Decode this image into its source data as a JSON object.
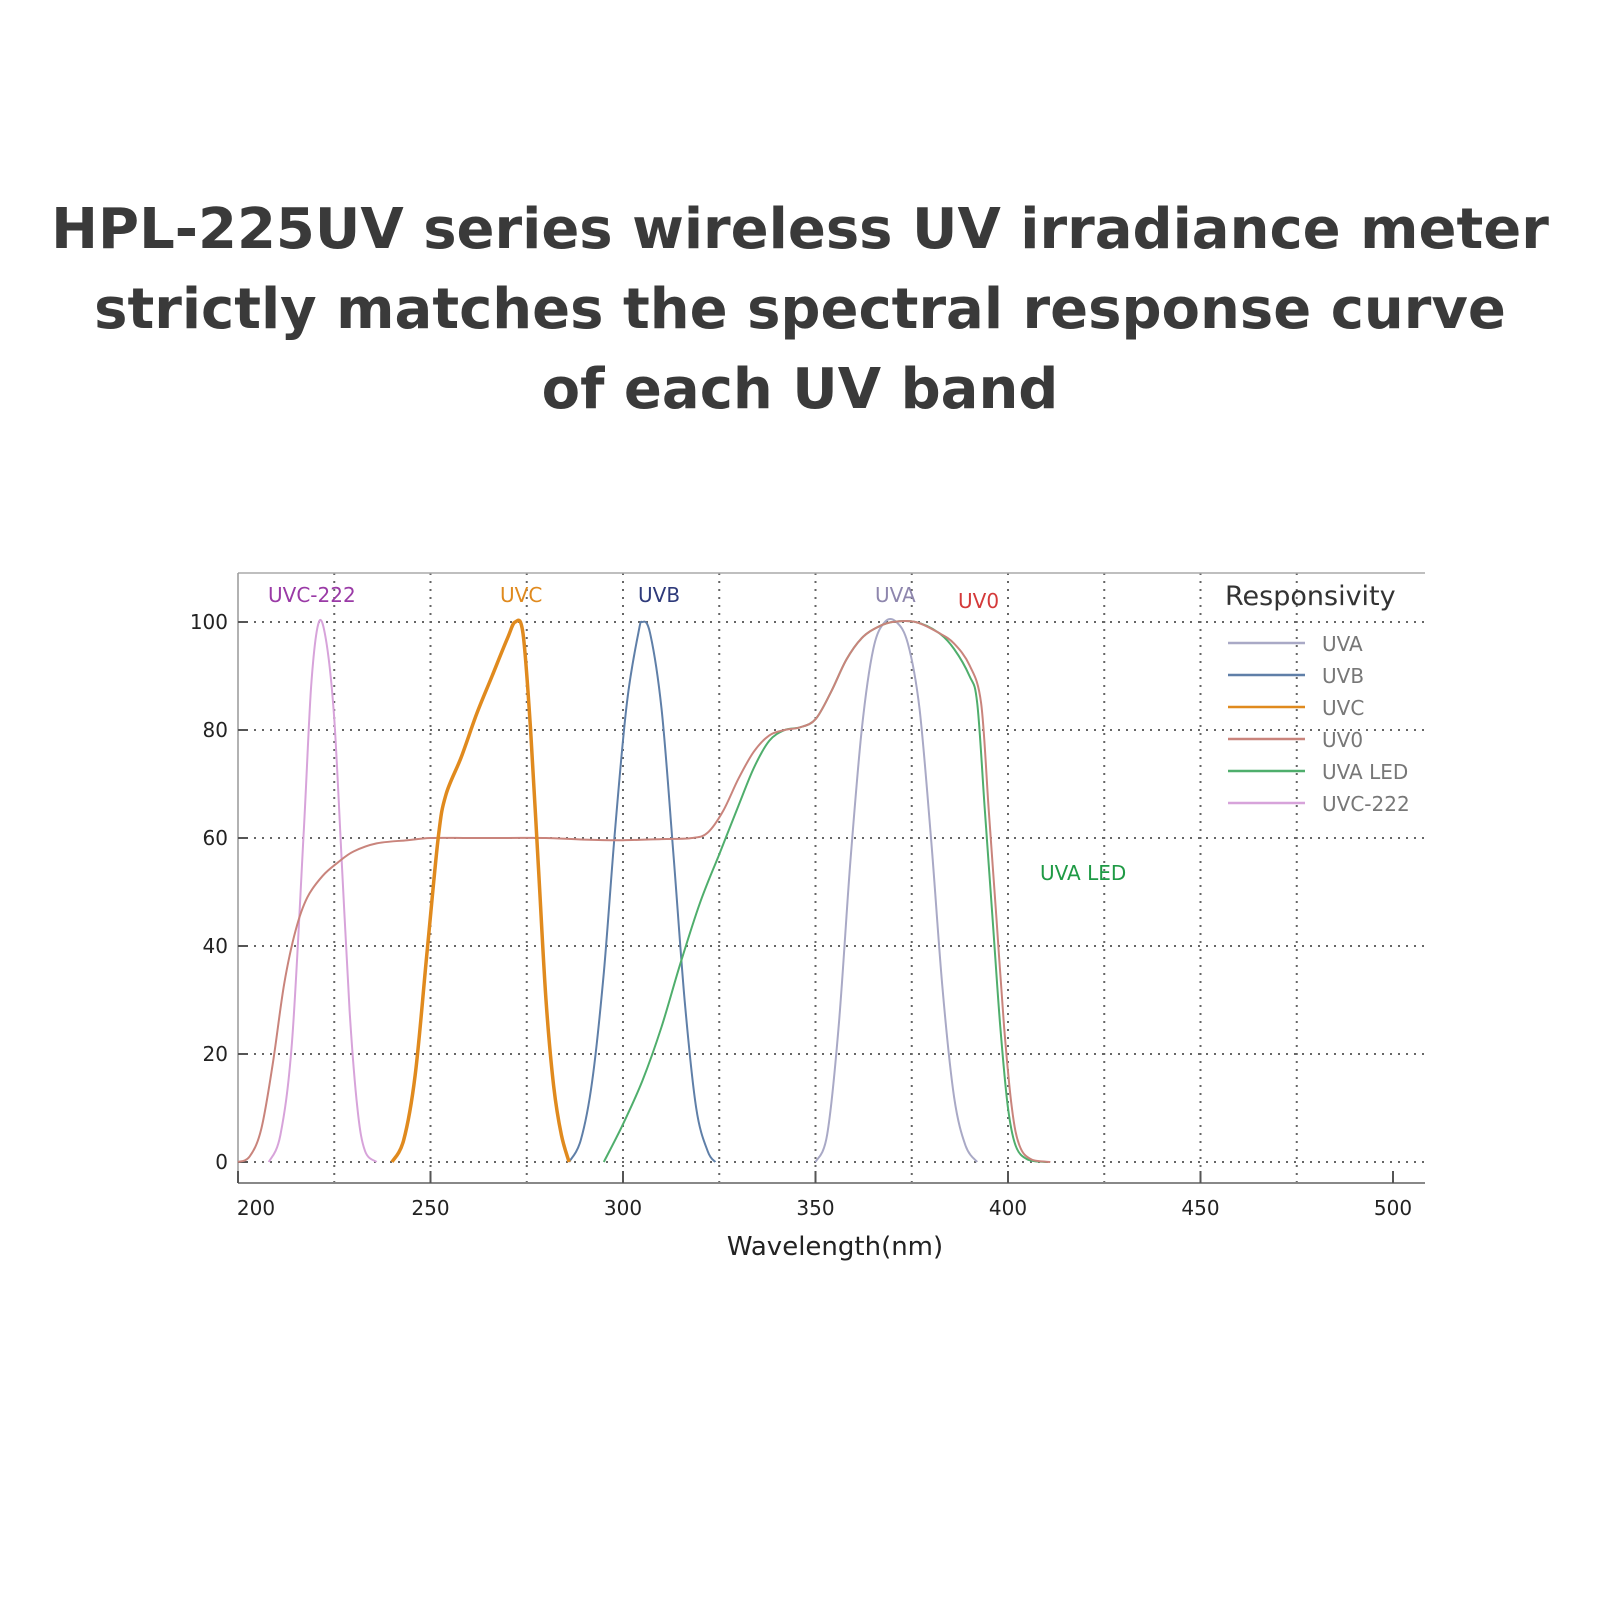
{
  "headline": {
    "line1": "HPL-225UV series wireless UV irradiance meter",
    "line2": "strictly matches the spectral response curve",
    "line3": "of each UV band"
  },
  "chart_data": {
    "type": "line",
    "xlabel": "Wavelength(nm)",
    "ylabel": "",
    "xlim": [
      200,
      500
    ],
    "ylim": [
      0,
      100
    ],
    "x_ticks": [
      200,
      250,
      300,
      350,
      400,
      450,
      500
    ],
    "y_ticks": [
      0,
      20,
      40,
      60,
      80,
      100
    ],
    "grid": true,
    "legend": {
      "title": "Responsivity",
      "position": "top-right"
    },
    "series": [
      {
        "name": "UVA",
        "color": "#a9a9c6",
        "label_color": "#8e86ad",
        "label": "UVA",
        "points": [
          [
            350,
            0
          ],
          [
            353,
            5
          ],
          [
            356,
            25
          ],
          [
            359,
            55
          ],
          [
            362,
            80
          ],
          [
            365,
            95
          ],
          [
            368,
            100
          ],
          [
            371,
            100
          ],
          [
            374,
            96
          ],
          [
            377,
            84
          ],
          [
            380,
            60
          ],
          [
            383,
            32
          ],
          [
            386,
            12
          ],
          [
            389,
            3
          ],
          [
            392,
            0
          ]
        ]
      },
      {
        "name": "UVB",
        "color": "#5f7fa8",
        "label_color": "#2e3a7a",
        "label": "UVB",
        "points": [
          [
            286,
            0
          ],
          [
            289,
            4
          ],
          [
            292,
            15
          ],
          [
            295,
            35
          ],
          [
            298,
            62
          ],
          [
            301,
            85
          ],
          [
            304,
            98
          ],
          [
            305,
            100
          ],
          [
            307,
            98
          ],
          [
            310,
            84
          ],
          [
            313,
            58
          ],
          [
            316,
            30
          ],
          [
            319,
            10
          ],
          [
            322,
            2
          ],
          [
            324,
            0
          ]
        ]
      },
      {
        "name": "UVC",
        "color": "#e08a1e",
        "label_color": "#e08a1e",
        "label": "UVC",
        "points": [
          [
            240,
            0
          ],
          [
            243,
            4
          ],
          [
            246,
            16
          ],
          [
            249,
            38
          ],
          [
            252,
            60
          ],
          [
            254,
            68
          ],
          [
            258,
            75
          ],
          [
            262,
            83
          ],
          [
            266,
            90
          ],
          [
            270,
            97
          ],
          [
            272,
            100
          ],
          [
            274,
            98
          ],
          [
            276,
            80
          ],
          [
            278,
            55
          ],
          [
            280,
            30
          ],
          [
            282,
            14
          ],
          [
            284,
            5
          ],
          [
            286,
            0
          ]
        ]
      },
      {
        "name": "UV0",
        "color": "#c9847c",
        "label_color": "#d43a3a",
        "label": "UV0",
        "points": [
          [
            200,
            0
          ],
          [
            203,
            1
          ],
          [
            206,
            6
          ],
          [
            209,
            18
          ],
          [
            212,
            33
          ],
          [
            215,
            43
          ],
          [
            218,
            49
          ],
          [
            222,
            53
          ],
          [
            226,
            55.5
          ],
          [
            230,
            57.5
          ],
          [
            236,
            59
          ],
          [
            244,
            59.6
          ],
          [
            250,
            60
          ],
          [
            260,
            60
          ],
          [
            270,
            60
          ],
          [
            280,
            60
          ],
          [
            290,
            59.7
          ],
          [
            300,
            59.6
          ],
          [
            310,
            59.8
          ],
          [
            318,
            60
          ],
          [
            322,
            61
          ],
          [
            326,
            65
          ],
          [
            330,
            71
          ],
          [
            334,
            76
          ],
          [
            338,
            79
          ],
          [
            342,
            80
          ],
          [
            346,
            80.5
          ],
          [
            350,
            82
          ],
          [
            354,
            87
          ],
          [
            358,
            93
          ],
          [
            362,
            97
          ],
          [
            366,
            99
          ],
          [
            370,
            100
          ],
          [
            376,
            100
          ],
          [
            382,
            98
          ],
          [
            386,
            96
          ],
          [
            390,
            92
          ],
          [
            393,
            85
          ],
          [
            395,
            65
          ],
          [
            397,
            45
          ],
          [
            399,
            25
          ],
          [
            401,
            10
          ],
          [
            403,
            3
          ],
          [
            406,
            0.5
          ],
          [
            411,
            0
          ]
        ]
      },
      {
        "name": "UVA LED",
        "color": "#4fae6c",
        "label_color": "#1f9a45",
        "label": "UVA LED",
        "points": [
          [
            295,
            0
          ],
          [
            300,
            7
          ],
          [
            305,
            15
          ],
          [
            310,
            25
          ],
          [
            315,
            37
          ],
          [
            320,
            48
          ],
          [
            325,
            57
          ],
          [
            330,
            66
          ],
          [
            334,
            73
          ],
          [
            338,
            78
          ],
          [
            342,
            80
          ],
          [
            346,
            80.5
          ],
          [
            350,
            82
          ],
          [
            354,
            87
          ],
          [
            358,
            93
          ],
          [
            362,
            97
          ],
          [
            366,
            99
          ],
          [
            370,
            100
          ],
          [
            376,
            100
          ],
          [
            382,
            98
          ],
          [
            386,
            95
          ],
          [
            390,
            90
          ],
          [
            392,
            85
          ],
          [
            394,
            65
          ],
          [
            396,
            45
          ],
          [
            398,
            25
          ],
          [
            400,
            10
          ],
          [
            402,
            3
          ],
          [
            405,
            0.5
          ],
          [
            410,
            0
          ]
        ]
      },
      {
        "name": "UVC-222",
        "color": "#d7a3da",
        "label_color": "#9a3aa6",
        "label": "UVC-222",
        "points": [
          [
            208,
            0
          ],
          [
            211,
            5
          ],
          [
            214,
            22
          ],
          [
            217,
            60
          ],
          [
            219,
            88
          ],
          [
            221,
            100
          ],
          [
            223,
            96
          ],
          [
            225,
            82
          ],
          [
            227,
            55
          ],
          [
            229,
            28
          ],
          [
            231,
            10
          ],
          [
            233,
            2
          ],
          [
            236,
            0
          ]
        ]
      }
    ]
  }
}
